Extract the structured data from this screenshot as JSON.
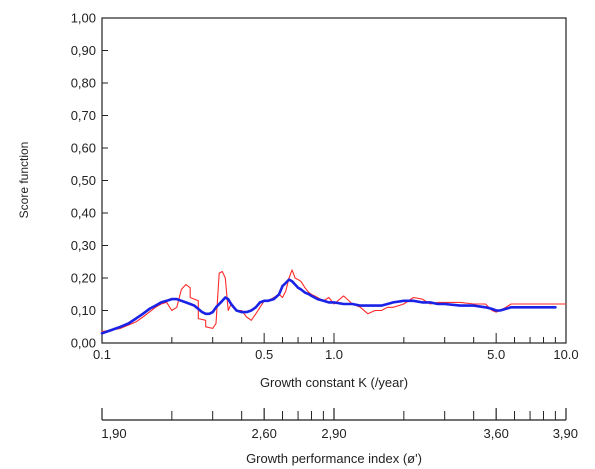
{
  "chart_data": {
    "type": "line",
    "title": "",
    "xlabel": "Growth constant K (/year)",
    "ylabel": "Score function",
    "x_scale": "log",
    "xlim": [
      0.1,
      10.0
    ],
    "ylim": [
      0.0,
      1.0
    ],
    "y_ticks": [
      "0,00",
      "0,10",
      "0,20",
      "0,30",
      "0,40",
      "0,50",
      "0,60",
      "0,70",
      "0,80",
      "0,90",
      "1,00"
    ],
    "x_tick_labels": [
      {
        "value": 0.1,
        "label": "0.1"
      },
      {
        "value": 0.5,
        "label": "0.5"
      },
      {
        "value": 1.0,
        "label": "1.0"
      },
      {
        "value": 5.0,
        "label": "5.0"
      },
      {
        "value": 10.0,
        "label": "10.0"
      }
    ],
    "grid": false,
    "legend": "none",
    "series": [
      {
        "color": "#ff2a2a",
        "style": "thin",
        "x": [
          0.1,
          0.11,
          0.12,
          0.13,
          0.14,
          0.15,
          0.16,
          0.17,
          0.18,
          0.19,
          0.2,
          0.21,
          0.22,
          0.23,
          0.24,
          0.24,
          0.26,
          0.26,
          0.28,
          0.28,
          0.3,
          0.31,
          0.32,
          0.33,
          0.34,
          0.35,
          0.36,
          0.37,
          0.38,
          0.4,
          0.42,
          0.44,
          0.46,
          0.48,
          0.5,
          0.52,
          0.55,
          0.58,
          0.6,
          0.62,
          0.64,
          0.66,
          0.68,
          0.7,
          0.72,
          0.75,
          0.78,
          0.8,
          0.85,
          0.9,
          0.95,
          1.0,
          1.1,
          1.2,
          1.3,
          1.4,
          1.5,
          1.6,
          1.7,
          1.8,
          2.0,
          2.2,
          2.4,
          2.6,
          2.8,
          3.0,
          3.5,
          4.0,
          4.5,
          4.8,
          5.0,
          5.2,
          5.5,
          5.8,
          6.0,
          7.0,
          8.0,
          9.0,
          10.0
        ],
        "y": [
          0.035,
          0.04,
          0.045,
          0.055,
          0.065,
          0.08,
          0.095,
          0.11,
          0.12,
          0.125,
          0.1,
          0.11,
          0.165,
          0.18,
          0.17,
          0.14,
          0.13,
          0.075,
          0.07,
          0.05,
          0.045,
          0.06,
          0.215,
          0.22,
          0.2,
          0.1,
          0.12,
          0.11,
          0.1,
          0.1,
          0.08,
          0.07,
          0.09,
          0.11,
          0.13,
          0.13,
          0.14,
          0.15,
          0.14,
          0.16,
          0.2,
          0.225,
          0.2,
          0.195,
          0.19,
          0.17,
          0.155,
          0.15,
          0.14,
          0.13,
          0.14,
          0.12,
          0.145,
          0.12,
          0.11,
          0.09,
          0.1,
          0.1,
          0.11,
          0.11,
          0.12,
          0.14,
          0.135,
          0.12,
          0.125,
          0.125,
          0.125,
          0.12,
          0.12,
          0.1,
          0.095,
          0.1,
          0.11,
          0.12,
          0.12,
          0.12,
          0.12,
          0.12,
          0.12
        ]
      },
      {
        "color": "#1a22e6",
        "style": "thick",
        "x": [
          0.1,
          0.11,
          0.12,
          0.13,
          0.14,
          0.15,
          0.16,
          0.17,
          0.18,
          0.19,
          0.2,
          0.21,
          0.22,
          0.23,
          0.24,
          0.25,
          0.26,
          0.27,
          0.28,
          0.29,
          0.3,
          0.31,
          0.32,
          0.33,
          0.34,
          0.35,
          0.36,
          0.37,
          0.38,
          0.4,
          0.42,
          0.44,
          0.46,
          0.48,
          0.5,
          0.52,
          0.55,
          0.58,
          0.6,
          0.62,
          0.64,
          0.66,
          0.68,
          0.7,
          0.72,
          0.75,
          0.78,
          0.8,
          0.85,
          0.9,
          0.95,
          1.0,
          1.1,
          1.2,
          1.3,
          1.4,
          1.5,
          1.6,
          1.7,
          1.8,
          2.0,
          2.2,
          2.4,
          2.6,
          2.8,
          3.0,
          3.5,
          4.0,
          4.5,
          4.8,
          5.0,
          5.2,
          5.5,
          5.8,
          6.0,
          7.0,
          8.0,
          9.0
        ],
        "y": [
          0.03,
          0.04,
          0.05,
          0.06,
          0.075,
          0.09,
          0.105,
          0.115,
          0.125,
          0.13,
          0.135,
          0.135,
          0.13,
          0.125,
          0.12,
          0.115,
          0.105,
          0.095,
          0.09,
          0.09,
          0.095,
          0.11,
          0.12,
          0.13,
          0.14,
          0.135,
          0.12,
          0.11,
          0.1,
          0.095,
          0.095,
          0.1,
          0.11,
          0.125,
          0.13,
          0.13,
          0.135,
          0.15,
          0.175,
          0.185,
          0.195,
          0.19,
          0.18,
          0.17,
          0.165,
          0.155,
          0.15,
          0.145,
          0.135,
          0.13,
          0.125,
          0.125,
          0.12,
          0.12,
          0.115,
          0.115,
          0.115,
          0.115,
          0.12,
          0.125,
          0.13,
          0.13,
          0.125,
          0.125,
          0.12,
          0.12,
          0.115,
          0.115,
          0.11,
          0.105,
          0.1,
          0.1,
          0.105,
          0.11,
          0.11,
          0.11,
          0.11,
          0.11
        ]
      }
    ],
    "secondary_axis": {
      "label": "Growth performance index (ø')",
      "tick_labels": [
        {
          "label": "1,90",
          "k": 0.1
        },
        {
          "label": "2,60",
          "k": 0.5
        },
        {
          "label": "2,90",
          "k": 1.0
        },
        {
          "label": "3,60",
          "k": 5.0
        },
        {
          "label": "3,90",
          "k": 10.0
        }
      ],
      "minor_ticks_k": [
        0.2,
        0.3,
        0.4,
        0.6,
        0.7,
        0.8,
        0.9,
        2.0,
        3.0,
        4.0,
        6.0,
        7.0,
        8.0,
        9.0
      ]
    }
  }
}
